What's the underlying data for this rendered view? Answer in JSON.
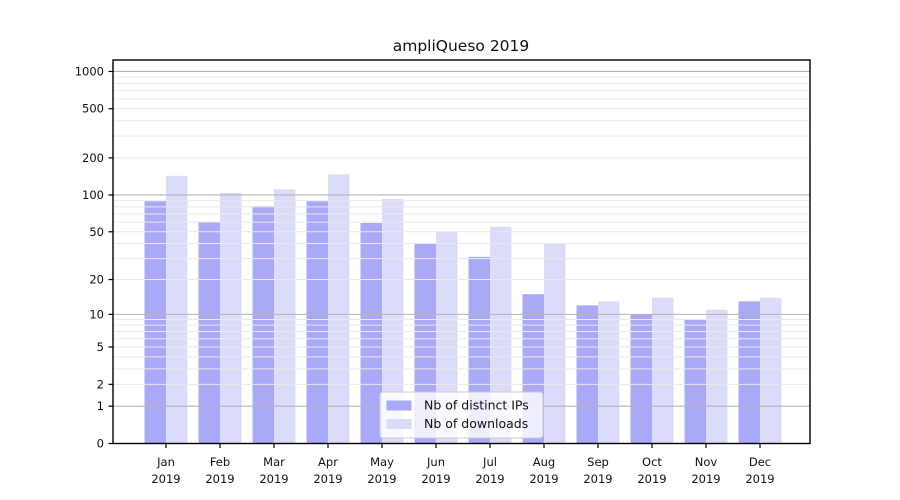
{
  "chart_data": {
    "type": "bar",
    "title": "ampliQueso 2019",
    "categories": [
      "Jan",
      "Feb",
      "Mar",
      "Apr",
      "May",
      "Jun",
      "Jul",
      "Aug",
      "Sep",
      "Oct",
      "Nov",
      "Dec"
    ],
    "year_label": "2019",
    "series": [
      {
        "name": "Nb of distinct IPs",
        "color": "#a9a9f7",
        "values": [
          89,
          60,
          81,
          89,
          59,
          40,
          31,
          15,
          12,
          10,
          9,
          13
        ]
      },
      {
        "name": "Nb of downloads",
        "color": "#dbdbfa",
        "values": [
          143,
          104,
          111,
          147,
          93,
          50,
          55,
          40,
          13,
          14,
          11,
          14
        ]
      }
    ],
    "y_axis": {
      "scale": "log10(1+x)",
      "tick_labels": [
        "0",
        "1",
        "2",
        "5",
        "10",
        "20",
        "50",
        "100",
        "200",
        "500",
        "1000"
      ],
      "tick_values": [
        0,
        1,
        2,
        5,
        10,
        20,
        50,
        100,
        200,
        500,
        1000
      ],
      "major_grid_values": [
        1,
        10,
        100,
        1000
      ],
      "range_max": 1200
    },
    "x_axis": {
      "tick_line1": [
        "Jan",
        "Feb",
        "Mar",
        "Apr",
        "May",
        "Jun",
        "Jul",
        "Aug",
        "Sep",
        "Oct",
        "Nov",
        "Dec"
      ],
      "tick_line2": [
        "2019",
        "2019",
        "2019",
        "2019",
        "2019",
        "2019",
        "2019",
        "2019",
        "2019",
        "2019",
        "2019",
        "2019"
      ]
    },
    "legend": {
      "position": "bottom-center",
      "entries": [
        "Nb of distinct IPs",
        "Nb of downloads"
      ]
    },
    "colors": {
      "background": "#ffffff",
      "axis": "#000000",
      "major_grid": "#b5b5b5",
      "minor_grid": "#e9e9e9",
      "legend_border": "#cccccc",
      "legend_bg": "#ffffff"
    },
    "grid": "on",
    "legend_visible": true
  }
}
